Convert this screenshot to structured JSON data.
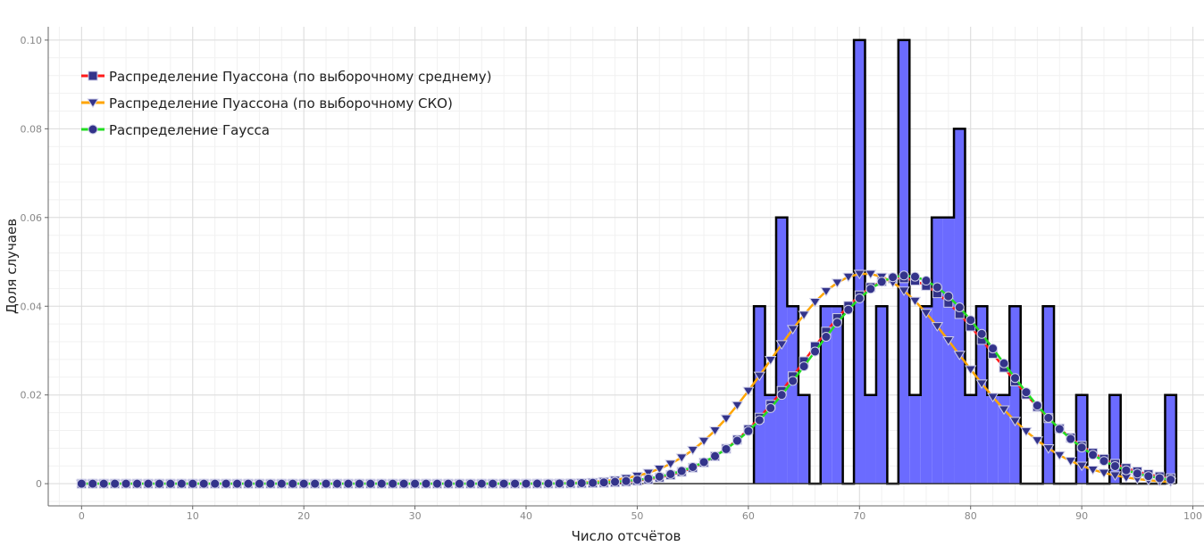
{
  "chart_data": {
    "type": "bar",
    "title": "",
    "xlabel": "Число отсчётов",
    "ylabel": "Доля случаев",
    "xlim": [
      -3,
      101
    ],
    "ylim": [
      -0.005,
      0.103
    ],
    "x_ticks": [
      0,
      10,
      20,
      30,
      40,
      50,
      60,
      70,
      80,
      90,
      100
    ],
    "x_tick_labels": [
      "0",
      "10",
      "20",
      "30",
      "40",
      "50",
      "60",
      "70",
      "80",
      "90",
      "100"
    ],
    "y_ticks": [
      0,
      0.02,
      0.04,
      0.06,
      0.08,
      0.1
    ],
    "y_tick_labels": [
      "0",
      "0.02",
      "0.04",
      "0.06",
      "0.08",
      "0.10"
    ],
    "grid": true,
    "legend_position": "top-left",
    "histogram": {
      "fill_color": "#6b6bff",
      "edge_color": "#000000",
      "bins": [
        {
          "x": 61,
          "value": 0.04
        },
        {
          "x": 62,
          "value": 0.02
        },
        {
          "x": 63,
          "value": 0.06
        },
        {
          "x": 64,
          "value": 0.04
        },
        {
          "x": 65,
          "value": 0.02
        },
        {
          "x": 67,
          "value": 0.04
        },
        {
          "x": 68,
          "value": 0.04
        },
        {
          "x": 70,
          "value": 0.1
        },
        {
          "x": 71,
          "value": 0.02
        },
        {
          "x": 72,
          "value": 0.04
        },
        {
          "x": 74,
          "value": 0.1
        },
        {
          "x": 75,
          "value": 0.02
        },
        {
          "x": 76,
          "value": 0.04
        },
        {
          "x": 77,
          "value": 0.06
        },
        {
          "x": 78,
          "value": 0.06
        },
        {
          "x": 79,
          "value": 0.08
        },
        {
          "x": 80,
          "value": 0.02
        },
        {
          "x": 81,
          "value": 0.04
        },
        {
          "x": 82,
          "value": 0.02
        },
        {
          "x": 83,
          "value": 0.02
        },
        {
          "x": 84,
          "value": 0.04
        },
        {
          "x": 87,
          "value": 0.04
        },
        {
          "x": 90,
          "value": 0.02
        },
        {
          "x": 93,
          "value": 0.02
        },
        {
          "x": 98,
          "value": 0.02
        }
      ]
    },
    "series": [
      {
        "name": "Распределение Пуассона (по выборочному среднему)",
        "line_color": "#ff1a1a",
        "marker": "square",
        "marker_color": "#33338a",
        "x_range": [
          0,
          98
        ],
        "mean": 74.1,
        "sd": 8.61
      },
      {
        "name": "Распределение Пуассона (по выборочному СКО)",
        "line_color": "#ffa500",
        "marker": "triangle-down",
        "marker_color": "#33338a",
        "x_range": [
          0,
          98
        ],
        "mean": 71.0,
        "sd": 8.43
      },
      {
        "name": "Распределение Гаусса",
        "line_color": "#22dd22",
        "marker": "circle",
        "marker_color": "#33338a",
        "x_range": [
          0,
          98
        ],
        "mean": 74.1,
        "sd": 8.5
      }
    ]
  }
}
